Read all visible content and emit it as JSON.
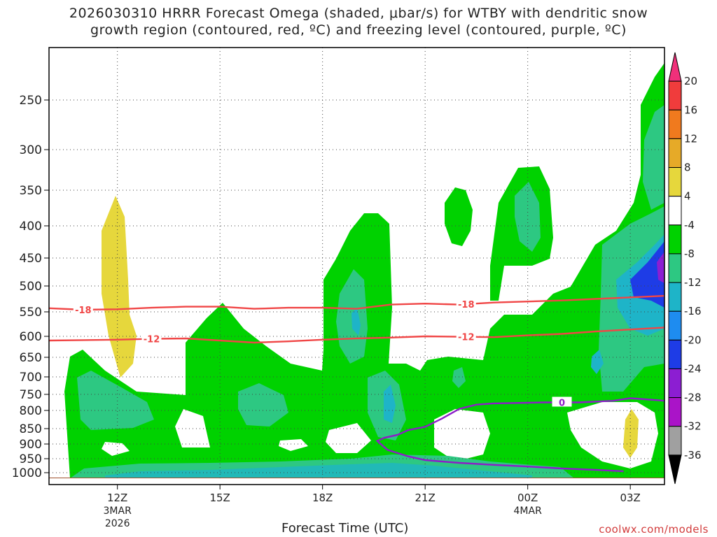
{
  "header": {
    "title_line1": "2026030310 HRRR Forecast Omega (shaded, μbar/s) for WTBY with dendritic snow",
    "title_line2": "growth region (contoured, red, ºC) and freezing level (contoured, purple, ºC)"
  },
  "footer": {
    "xlabel": "Forecast Time (UTC)",
    "credit": "coolwx.com/models"
  },
  "chart_data": {
    "type": "contour",
    "title": "2026030310 HRRR Forecast Omega (shaded, μbar/s) for WTBY with dendritic snow growth region (contoured, red, ºC) and freezing level (contoured, purple, ºC)",
    "xlabel": "Forecast Time (UTC)",
    "ylabel": "",
    "x_range_hours_utc": [
      10.0,
      28.0
    ],
    "y_range_hpa": [
      1000,
      200
    ],
    "x_ticks": [
      {
        "hour": 12,
        "label": "12Z",
        "sub1": "3MAR",
        "sub2": "2026"
      },
      {
        "hour": 15,
        "label": "15Z",
        "sub1": "",
        "sub2": ""
      },
      {
        "hour": 18,
        "label": "18Z",
        "sub1": "",
        "sub2": ""
      },
      {
        "hour": 21,
        "label": "21Z",
        "sub1": "",
        "sub2": ""
      },
      {
        "hour": 24,
        "label": "00Z",
        "sub1": "4MAR",
        "sub2": ""
      },
      {
        "hour": 27,
        "label": "03Z",
        "sub1": "",
        "sub2": ""
      }
    ],
    "y_ticks": [
      250,
      300,
      350,
      400,
      450,
      500,
      550,
      600,
      650,
      700,
      750,
      800,
      850,
      900,
      950,
      1000
    ],
    "grid": true,
    "colorbar": {
      "labels": [
        "20",
        "16",
        "12",
        "8",
        "4",
        "-4",
        "-8",
        "-12",
        "-16",
        "-20",
        "-24",
        "-28",
        "-32",
        "-36"
      ],
      "colors": [
        "#f0307a",
        "#f03c3c",
        "#f07a1e",
        "#e6aa28",
        "#e6d73c",
        "#ffffff",
        "#00d200",
        "#2dc882",
        "#1eb4c8",
        "#1e8cf0",
        "#1e3ce6",
        "#8c1ed2",
        "#aa14c8",
        "#a0a0a0",
        "#000000"
      ]
    },
    "series": [
      {
        "name": "-18",
        "color": "#f04646",
        "kind": "dendritic growth isotherm",
        "x": [
          10.0,
          11.0,
          12.0,
          13.0,
          14.0,
          15.0,
          16.0,
          17.0,
          18.0,
          19.0,
          20.0,
          21.0,
          22.0,
          23.0,
          24.0,
          25.0,
          26.0,
          27.0,
          28.0
        ],
        "y": [
          543,
          546,
          545,
          542,
          540,
          540,
          544,
          542,
          542,
          544,
          536,
          534,
          536,
          532,
          530,
          528,
          525,
          522,
          519
        ]
      },
      {
        "name": "-12",
        "color": "#f04646",
        "kind": "dendritic growth isotherm",
        "x": [
          10.0,
          11.0,
          12.0,
          13.0,
          14.0,
          15.0,
          16.0,
          17.0,
          18.0,
          19.0,
          20.0,
          21.0,
          22.0,
          23.0,
          24.0,
          25.0,
          26.0,
          27.0,
          28.0
        ],
        "y": [
          610,
          609,
          608,
          606,
          605,
          610,
          615,
          612,
          608,
          605,
          603,
          600,
          601,
          602,
          598,
          595,
          590,
          586,
          582
        ]
      },
      {
        "name": "0",
        "color": "#8c1ec8",
        "kind": "freezing level",
        "x": [
          28.0,
          27.8,
          27.0,
          26.5,
          25.5,
          24.5,
          24.0,
          23.0,
          22.5,
          22.0,
          21.5,
          21.0,
          20.5,
          20.2,
          19.8,
          19.6,
          19.7,
          19.9,
          20.5,
          21.0,
          22.0,
          23.0,
          24.0,
          25.0,
          26.0,
          26.8
        ],
        "y": [
          770,
          768,
          762,
          770,
          775,
          775,
          776,
          778,
          782,
          795,
          822,
          845,
          855,
          870,
          880,
          890,
          900,
          920,
          942,
          955,
          965,
          972,
          978,
          985,
          990,
          995
        ]
      }
    ],
    "omega_shading": [
      {
        "level": "-4 to -8",
        "description": "broad weak ascent 700-1000 hPa 10-28Z; plumes near 19Z, 22-23Z, 24Z and 26-28Z"
      },
      {
        "level": "-8 to -12",
        "description": "low-level band and patches near 11Z, 14Z, 19Z, 24Z, 27Z"
      },
      {
        "level": "-12 to -16",
        "description": "cores near 19Z 575 hPa, 19.5Z 780 hPa, 21.5Z 980 hPa"
      },
      {
        "level": "-20 to -24",
        "description": "strongest ascent near 27.5-28Z, 450-500 hPa"
      },
      {
        "level": "4 to 8",
        "description": "weak descent near 12Z 360-610 hPa and 27Z 800-940 hPa"
      }
    ],
    "contour_labels": [
      "-18",
      "-18",
      "-12",
      "-12",
      "0"
    ]
  }
}
